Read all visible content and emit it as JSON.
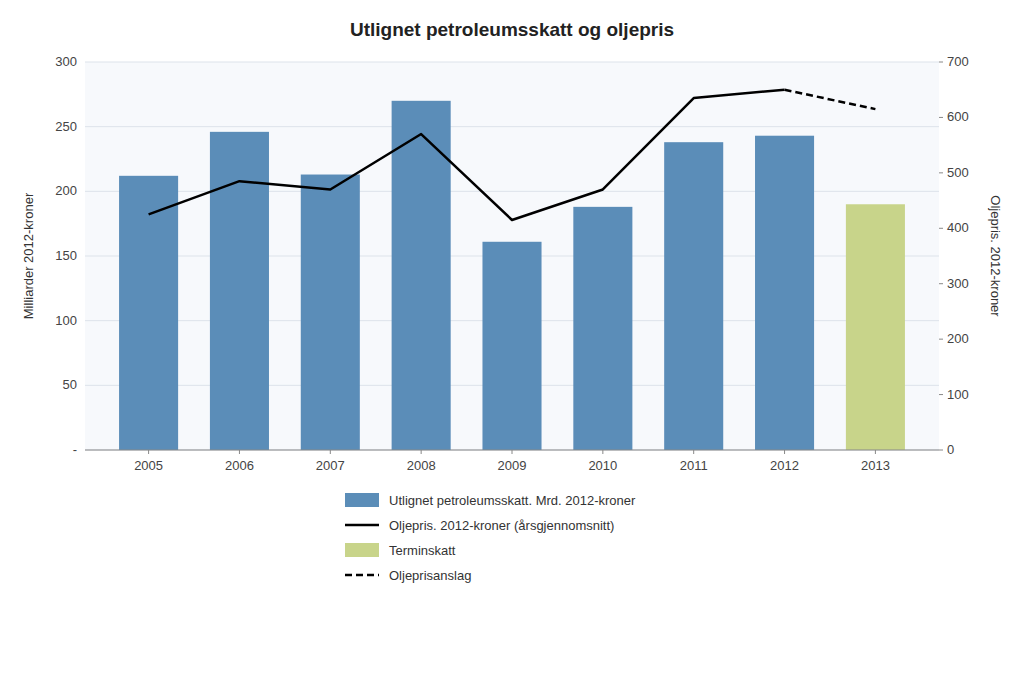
{
  "chart_data": {
    "type": "bar",
    "title": "Utlignet petroleumsskatt og oljepris",
    "x": [
      2005,
      2006,
      2007,
      2008,
      2009,
      2010,
      2011,
      2012,
      2013
    ],
    "xlim": [
      2004.3,
      2013.7
    ],
    "xticks": [
      2005,
      2006,
      2007,
      2008,
      2009,
      2010,
      2011,
      2012,
      2013
    ],
    "ylabel": "Milliarder 2012-kroner",
    "y2label": "Oljepris. 2012-kroner",
    "ylim": [
      0,
      300
    ],
    "yticks": [
      {
        "value": 0,
        "label": "-"
      },
      50,
      100,
      150,
      200,
      250,
      300
    ],
    "y2lim": [
      0,
      700
    ],
    "y2ticks": [
      0,
      100,
      200,
      300,
      400,
      500,
      600,
      700
    ],
    "grid": true,
    "legend": "bottom",
    "series": [
      {
        "name": "Utlignet petroleumsskatt. Mrd. 2012-kroner",
        "type": "bar",
        "color": "#5b8db8",
        "values": [
          212,
          246,
          213,
          270,
          161,
          188,
          238,
          243,
          null
        ]
      },
      {
        "name": "Oljepris. 2012-kroner (årsgjennomsnitt)",
        "type": "line",
        "axis": "y2",
        "color": "#000000",
        "line_style": "solid",
        "values": [
          425,
          485,
          470,
          570,
          415,
          470,
          635,
          650,
          null
        ]
      },
      {
        "name": "Terminskatt",
        "type": "bar",
        "color": "#c8d48a",
        "values": [
          null,
          null,
          null,
          null,
          null,
          null,
          null,
          null,
          190
        ]
      },
      {
        "name": "Oljeprisanslag",
        "type": "line",
        "axis": "y2",
        "color": "#000000",
        "line_style": "dashed",
        "values": [
          null,
          null,
          null,
          null,
          null,
          null,
          null,
          650,
          615
        ]
      }
    ]
  }
}
